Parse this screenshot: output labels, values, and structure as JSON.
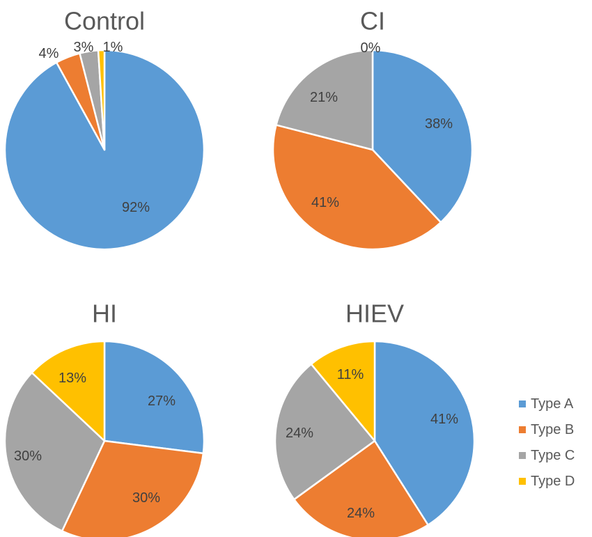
{
  "figure": {
    "categories": [
      "Type A",
      "Type B",
      "Type C",
      "Type D"
    ],
    "colors": {
      "Type A": "#5B9BD5",
      "Type B": "#ED7D31",
      "Type C": "#A5A5A5",
      "Type D": "#FFC000"
    }
  },
  "legend": {
    "position": "right",
    "items": [
      {
        "label": "Type A",
        "color": "#5B9BD5"
      },
      {
        "label": "Type B",
        "color": "#ED7D31"
      },
      {
        "label": "Type C",
        "color": "#A5A5A5"
      },
      {
        "label": "Type D",
        "color": "#FFC000"
      }
    ]
  },
  "chart_data": [
    {
      "type": "pie",
      "title": "Control",
      "slices": [
        {
          "category": "Type A",
          "value": 92,
          "label": "92%"
        },
        {
          "category": "Type B",
          "value": 4,
          "label": "4%"
        },
        {
          "category": "Type C",
          "value": 3,
          "label": "3%"
        },
        {
          "category": "Type D",
          "value": 1,
          "label": "1%"
        }
      ]
    },
    {
      "type": "pie",
      "title": "CI",
      "slices": [
        {
          "category": "Type A",
          "value": 38,
          "label": "38%"
        },
        {
          "category": "Type B",
          "value": 41,
          "label": "41%"
        },
        {
          "category": "Type C",
          "value": 21,
          "label": "21%"
        },
        {
          "category": "Type D",
          "value": 0,
          "label": "0%"
        }
      ]
    },
    {
      "type": "pie",
      "title": "HI",
      "slices": [
        {
          "category": "Type A",
          "value": 27,
          "label": "27%"
        },
        {
          "category": "Type B",
          "value": 30,
          "label": "30%"
        },
        {
          "category": "Type C",
          "value": 30,
          "label": "30%"
        },
        {
          "category": "Type D",
          "value": 13,
          "label": "13%"
        }
      ]
    },
    {
      "type": "pie",
      "title": "HIEV",
      "slices": [
        {
          "category": "Type A",
          "value": 41,
          "label": "41%"
        },
        {
          "category": "Type B",
          "value": 24,
          "label": "24%"
        },
        {
          "category": "Type C",
          "value": 24,
          "label": "24%"
        },
        {
          "category": "Type D",
          "value": 11,
          "label": "11%"
        }
      ]
    }
  ]
}
